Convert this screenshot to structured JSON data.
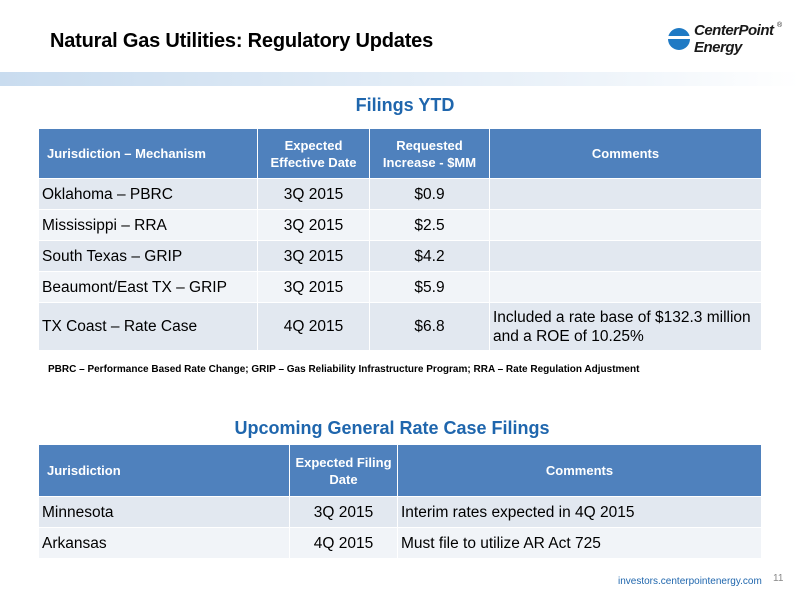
{
  "header": {
    "title": "Natural Gas Utilities:  Regulatory Updates",
    "logo_line1": "CenterPoint",
    "logo_line2": "Energy",
    "logo_mark": "®"
  },
  "filings": {
    "title": "Filings YTD",
    "columns": [
      "Jurisdiction – Mechanism",
      "Expected Effective Date",
      "Requested Increase - $MM",
      "Comments"
    ],
    "rows": [
      {
        "jurisdiction": "Oklahoma – PBRC",
        "date": "3Q 2015",
        "increase": "$0.9",
        "comments": ""
      },
      {
        "jurisdiction": "Mississippi – RRA",
        "date": "3Q 2015",
        "increase": "$2.5",
        "comments": ""
      },
      {
        "jurisdiction": "South Texas – GRIP",
        "date": "3Q 2015",
        "increase": "$4.2",
        "comments": ""
      },
      {
        "jurisdiction": "Beaumont/East TX – GRIP",
        "date": "3Q 2015",
        "increase": "$5.9",
        "comments": ""
      },
      {
        "jurisdiction": "TX Coast – Rate Case",
        "date": "4Q 2015",
        "increase": "$6.8",
        "comments": "Included a rate base of $132.3 million and a ROE of 10.25%"
      }
    ],
    "footnote": "PBRC – Performance Based Rate Change; GRIP – Gas Reliability Infrastructure Program; RRA – Rate Regulation Adjustment"
  },
  "rate_cases": {
    "title": "Upcoming General Rate Case Filings",
    "columns": [
      "Jurisdiction",
      "Expected Filing Date",
      "Comments"
    ],
    "rows": [
      {
        "jurisdiction": "Minnesota",
        "date": "3Q 2015",
        "comments": "Interim rates expected in 4Q 2015"
      },
      {
        "jurisdiction": "Arkansas",
        "date": "4Q 2015",
        "comments": "Must file to utilize AR Act 725"
      }
    ]
  },
  "footer": {
    "website": "investors.centerpointenergy.com",
    "page_number": "11"
  },
  "colors": {
    "header_fill": "#4f81bd",
    "title_blue": "#1f66ad",
    "row_dark": "#e2e8f0",
    "row_light": "#f1f4f8"
  }
}
